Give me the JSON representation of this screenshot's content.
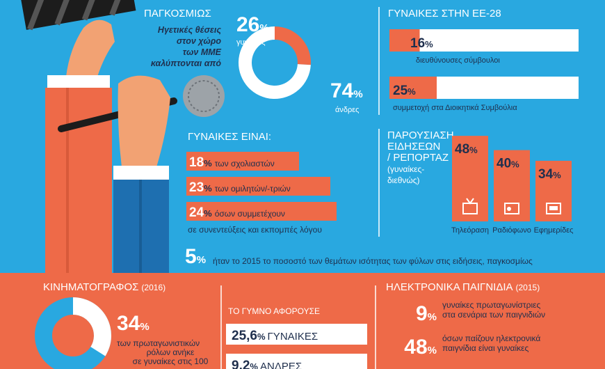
{
  "percent_sign": "%",
  "global": {
    "title": "ΠΑΓΚΟΣΜΙΩΣ",
    "text": [
      "Ηγετικές θέσεις",
      "στον χώρο",
      "των ΜΜΕ",
      "καλύπτονται από"
    ],
    "women": {
      "value": 26,
      "label": "γυναίκες"
    },
    "men": {
      "value": 74,
      "label": "άνδρες"
    }
  },
  "eu28": {
    "title": "ΓΥΝΑΙΚΕΣ ΣΤΗΝ ΕΕ-28",
    "items": [
      {
        "value": 16,
        "label": "διευθύνουσες σύμβουλοι"
      },
      {
        "value": 25,
        "label": "συμμετοχή στα Διοικητικά Συμβούλια"
      }
    ]
  },
  "women_are": {
    "title": "ΓΥΝΑΙΚΕΣ ΕΙΝΑΙ:",
    "items": [
      {
        "value": 18,
        "label": "των σχολιαστών"
      },
      {
        "value": 23,
        "label": "των ομιλητών/-τριών"
      },
      {
        "value": 24,
        "label": "όσων συμμετέχουν",
        "continuation": "σε συνεντεύξεις και εκπομπές λόγου"
      }
    ]
  },
  "news": {
    "title": [
      "ΠΑΡΟΥΣΙΑΣΗ",
      "ΕΙΔΗΣΕΩΝ",
      "/ ΡΕΠΟΡΤΑΖ",
      "(γυναίκες-",
      "διεθνώς)"
    ],
    "media": [
      {
        "value": 48,
        "label": "Τηλεόραση"
      },
      {
        "value": 40,
        "label": "Ραδιόφωνο"
      },
      {
        "value": 34,
        "label": "Εφημερίδες"
      }
    ]
  },
  "gender_equality": {
    "value": 5,
    "text": "ήταν το 2015 το ποσοστό των θεμάτων ισότητας των φύλων στις ειδήσεις, παγκοσμίως"
  },
  "cinema": {
    "title": "ΚΙΝΗΜΑΤΟΓΡΑΦΟΣ",
    "year": "(2016)",
    "value": 34,
    "text": [
      "των πρωταγωνιστικών",
      "ρόλων ανήκε",
      "σε γυναίκες στις 100"
    ],
    "nudity": {
      "title": "ΤΟ ΓΥΜΝΟ ΑΦΟΡΟΥΣΕ",
      "items": [
        {
          "value": "25,6",
          "label": "ΓΥΝΑΙΚΕΣ"
        },
        {
          "value": "9,2",
          "label": "ΑΝΔΡΕΣ"
        }
      ]
    }
  },
  "games": {
    "title": "ΗΛΕΚΤΡΟΝΙΚΑ ΠΑΙΓΝΙΔΙΑ",
    "year": "(2015)",
    "items": [
      {
        "value": 9,
        "text": [
          "γυναίκες πρωταγωνίστριες",
          "στα σενάρια των παιγνιδιών"
        ]
      },
      {
        "value": 48,
        "text": [
          "όσων παίζουν ηλεκτρονικά",
          "παιγνίδια είναι γυναίκες"
        ]
      }
    ]
  }
}
